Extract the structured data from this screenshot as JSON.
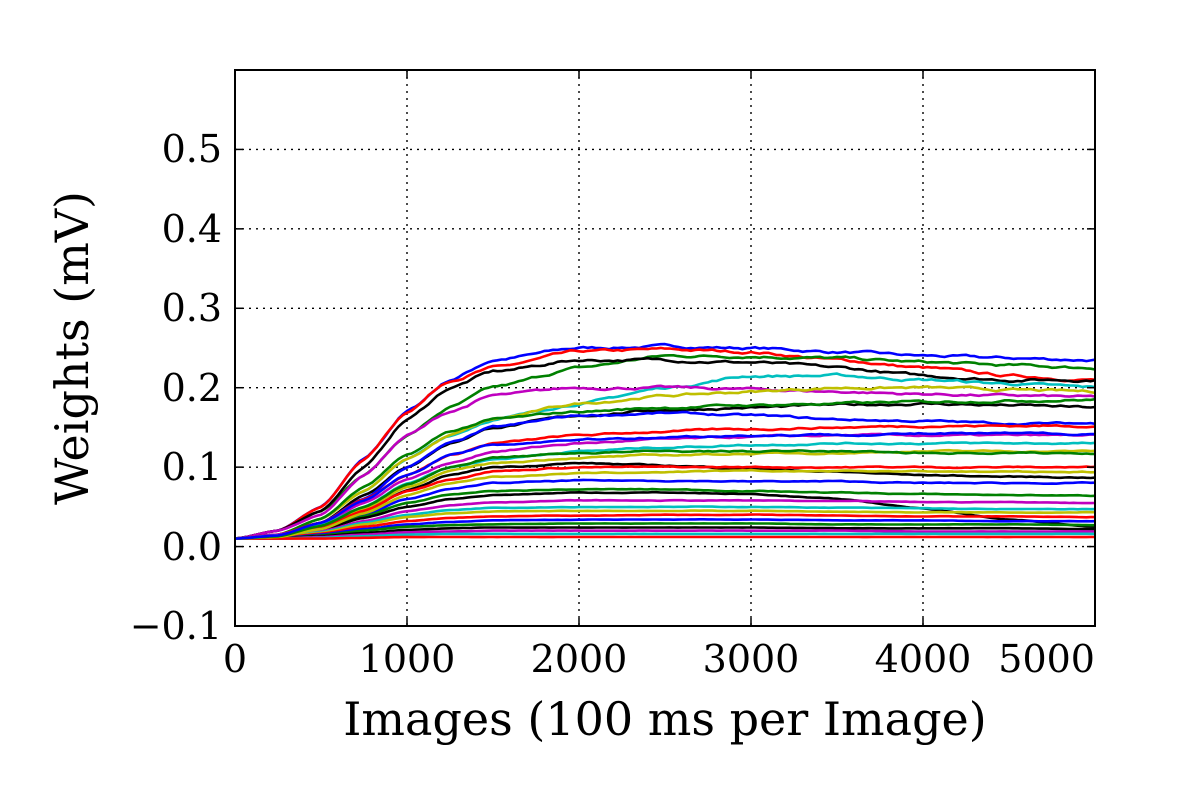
{
  "chart_data": {
    "type": "line",
    "title": "",
    "xlabel": "Images (100 ms per Image)",
    "ylabel": "Weights (mV)",
    "xlim": [
      0,
      5000
    ],
    "ylim": [
      -0.1,
      0.6
    ],
    "xticks": [
      0,
      1000,
      2000,
      3000,
      4000,
      5000
    ],
    "xtick_labels": [
      "0",
      "1000",
      "2000",
      "3000",
      "4000",
      "5000"
    ],
    "yticks": [
      -0.1,
      0.0,
      0.1,
      0.2,
      0.3,
      0.4,
      0.5
    ],
    "ytick_labels": [
      "−0.1",
      "0.0",
      "0.1",
      "0.2",
      "0.3",
      "0.4",
      "0.5"
    ],
    "grid": true,
    "legend": "none",
    "x": [
      0,
      250,
      500,
      750,
      1000,
      1250,
      1500,
      2000,
      2500,
      3000,
      3500,
      4000,
      4500,
      5000
    ],
    "series": [
      {
        "color": "#0000ff",
        "values": [
          0.01,
          0.02,
          0.05,
          0.11,
          0.17,
          0.21,
          0.235,
          0.25,
          0.252,
          0.25,
          0.245,
          0.24,
          0.237,
          0.235
        ]
      },
      {
        "color": "#ff0000",
        "values": [
          0.01,
          0.02,
          0.05,
          0.11,
          0.17,
          0.21,
          0.225,
          0.245,
          0.248,
          0.245,
          0.235,
          0.225,
          0.215,
          0.21
        ]
      },
      {
        "color": "#008000",
        "values": [
          0.01,
          0.02,
          0.045,
          0.09,
          0.14,
          0.175,
          0.2,
          0.225,
          0.24,
          0.24,
          0.237,
          0.232,
          0.228,
          0.225
        ]
      },
      {
        "color": "#000000",
        "values": [
          0.01,
          0.02,
          0.045,
          0.1,
          0.16,
          0.2,
          0.22,
          0.235,
          0.235,
          0.232,
          0.225,
          0.215,
          0.21,
          0.21
        ]
      },
      {
        "color": "#00bfbf",
        "values": [
          0.01,
          0.015,
          0.035,
          0.07,
          0.11,
          0.14,
          0.16,
          0.18,
          0.2,
          0.215,
          0.215,
          0.21,
          0.205,
          0.2
        ]
      },
      {
        "color": "#bf00bf",
        "values": [
          0.01,
          0.02,
          0.04,
          0.09,
          0.14,
          0.17,
          0.19,
          0.2,
          0.2,
          0.198,
          0.195,
          0.192,
          0.19,
          0.188
        ]
      },
      {
        "color": "#bfbf00",
        "values": [
          0.01,
          0.015,
          0.035,
          0.07,
          0.11,
          0.14,
          0.16,
          0.18,
          0.19,
          0.195,
          0.2,
          0.2,
          0.197,
          0.195
        ]
      },
      {
        "color": "#000000",
        "values": [
          0.01,
          0.015,
          0.03,
          0.065,
          0.1,
          0.13,
          0.15,
          0.165,
          0.172,
          0.175,
          0.178,
          0.18,
          0.178,
          0.175
        ]
      },
      {
        "color": "#0000ff",
        "values": [
          0.01,
          0.015,
          0.03,
          0.06,
          0.1,
          0.13,
          0.15,
          0.165,
          0.168,
          0.165,
          0.16,
          0.158,
          0.155,
          0.155
        ]
      },
      {
        "color": "#008000",
        "values": [
          0.01,
          0.015,
          0.035,
          0.075,
          0.115,
          0.145,
          0.16,
          0.17,
          0.175,
          0.178,
          0.18,
          0.182,
          0.184,
          0.185
        ]
      },
      {
        "color": "#ff0000",
        "values": [
          0.01,
          0.015,
          0.03,
          0.06,
          0.09,
          0.115,
          0.13,
          0.14,
          0.145,
          0.148,
          0.15,
          0.152,
          0.152,
          0.152
        ]
      },
      {
        "color": "#bf00bf",
        "values": [
          0.01,
          0.015,
          0.028,
          0.055,
          0.085,
          0.105,
          0.12,
          0.13,
          0.135,
          0.138,
          0.14,
          0.14,
          0.14,
          0.14
        ]
      },
      {
        "color": "#00bfbf",
        "values": [
          0.01,
          0.014,
          0.027,
          0.05,
          0.08,
          0.1,
          0.11,
          0.12,
          0.125,
          0.128,
          0.13,
          0.13,
          0.13,
          0.13
        ]
      },
      {
        "color": "#000000",
        "values": [
          0.01,
          0.013,
          0.025,
          0.045,
          0.07,
          0.09,
          0.1,
          0.105,
          0.102,
          0.098,
          0.094,
          0.09,
          0.088,
          0.087
        ]
      },
      {
        "color": "#bfbf00",
        "values": [
          0.01,
          0.013,
          0.025,
          0.048,
          0.075,
          0.095,
          0.105,
          0.112,
          0.115,
          0.117,
          0.118,
          0.12,
          0.12,
          0.12
        ]
      },
      {
        "color": "#ff0000",
        "values": [
          0.01,
          0.013,
          0.024,
          0.045,
          0.07,
          0.085,
          0.095,
          0.1,
          0.1,
          0.1,
          0.1,
          0.1,
          0.1,
          0.1
        ]
      },
      {
        "color": "#0000ff",
        "values": [
          0.01,
          0.012,
          0.022,
          0.04,
          0.06,
          0.072,
          0.08,
          0.083,
          0.083,
          0.082,
          0.082,
          0.08,
          0.08,
          0.08
        ]
      },
      {
        "color": "#008000",
        "values": [
          0.01,
          0.012,
          0.021,
          0.038,
          0.055,
          0.065,
          0.07,
          0.072,
          0.072,
          0.07,
          0.068,
          0.066,
          0.065,
          0.064
        ]
      },
      {
        "color": "#000000",
        "values": [
          0.01,
          0.012,
          0.021,
          0.036,
          0.05,
          0.06,
          0.065,
          0.068,
          0.068,
          0.066,
          0.06,
          0.048,
          0.034,
          0.025
        ]
      },
      {
        "color": "#bf00bf",
        "values": [
          0.01,
          0.011,
          0.019,
          0.032,
          0.045,
          0.052,
          0.056,
          0.058,
          0.058,
          0.058,
          0.057,
          0.056,
          0.056,
          0.055
        ]
      },
      {
        "color": "#00bfbf",
        "values": [
          0.01,
          0.011,
          0.018,
          0.03,
          0.04,
          0.046,
          0.049,
          0.05,
          0.05,
          0.05,
          0.049,
          0.048,
          0.047,
          0.047
        ]
      },
      {
        "color": "#bfbf00",
        "values": [
          0.01,
          0.011,
          0.017,
          0.028,
          0.037,
          0.042,
          0.044,
          0.045,
          0.045,
          0.045,
          0.044,
          0.043,
          0.043,
          0.043
        ]
      },
      {
        "color": "#ff0000",
        "values": [
          0.01,
          0.011,
          0.016,
          0.025,
          0.032,
          0.036,
          0.038,
          0.039,
          0.04,
          0.04,
          0.039,
          0.038,
          0.038,
          0.037
        ]
      },
      {
        "color": "#0000ff",
        "values": [
          0.01,
          0.01,
          0.015,
          0.022,
          0.028,
          0.031,
          0.033,
          0.034,
          0.034,
          0.034,
          0.033,
          0.033,
          0.032,
          0.032
        ]
      },
      {
        "color": "#008000",
        "values": [
          0.01,
          0.01,
          0.014,
          0.02,
          0.025,
          0.027,
          0.028,
          0.029,
          0.029,
          0.029,
          0.028,
          0.028,
          0.028,
          0.027
        ]
      },
      {
        "color": "#000000",
        "values": [
          0.01,
          0.01,
          0.013,
          0.017,
          0.021,
          0.023,
          0.024,
          0.024,
          0.024,
          0.024,
          0.023,
          0.023,
          0.023,
          0.022
        ]
      },
      {
        "color": "#bf00bf",
        "values": [
          0.01,
          0.01,
          0.012,
          0.015,
          0.018,
          0.019,
          0.02,
          0.02,
          0.02,
          0.02,
          0.02,
          0.019,
          0.019,
          0.019
        ]
      },
      {
        "color": "#00bfbf",
        "values": [
          0.01,
          0.01,
          0.011,
          0.013,
          0.015,
          0.016,
          0.016,
          0.016,
          0.016,
          0.016,
          0.016,
          0.016,
          0.016,
          0.016
        ]
      },
      {
        "color": "#ff0000",
        "values": [
          0.01,
          0.01,
          0.01,
          0.011,
          0.012,
          0.012,
          0.012,
          0.012,
          0.012,
          0.012,
          0.012,
          0.012,
          0.012,
          0.012
        ]
      },
      {
        "color": "#bfbf00",
        "values": [
          0.01,
          0.012,
          0.022,
          0.042,
          0.065,
          0.08,
          0.088,
          0.092,
          0.094,
          0.095,
          0.095,
          0.095,
          0.094,
          0.094
        ]
      },
      {
        "color": "#008000",
        "values": [
          0.01,
          0.013,
          0.026,
          0.05,
          0.078,
          0.1,
          0.112,
          0.118,
          0.12,
          0.12,
          0.12,
          0.118,
          0.118,
          0.117
        ]
      },
      {
        "color": "#0000ff",
        "values": [
          0.01,
          0.014,
          0.03,
          0.058,
          0.09,
          0.115,
          0.128,
          0.135,
          0.138,
          0.14,
          0.141,
          0.142,
          0.142,
          0.142
        ]
      }
    ]
  }
}
